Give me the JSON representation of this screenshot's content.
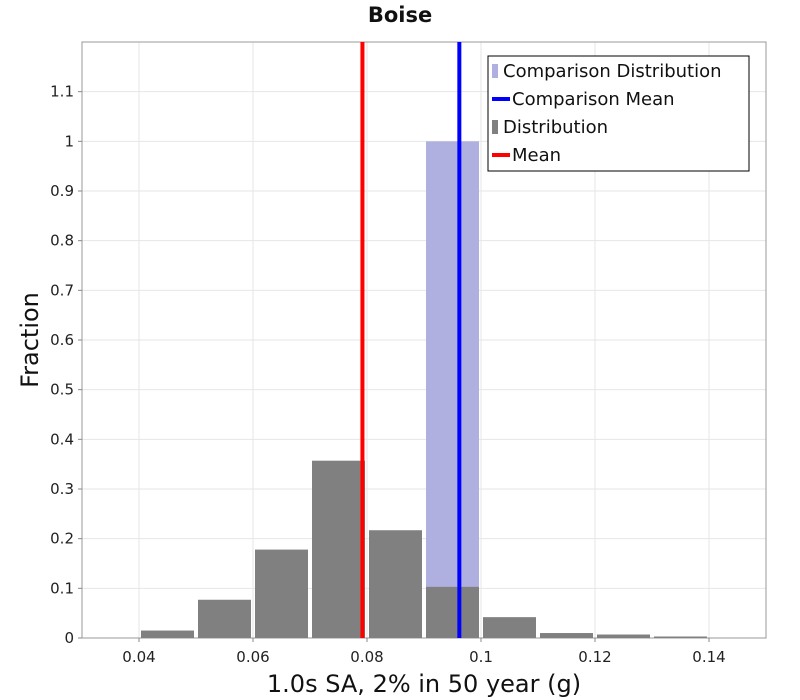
{
  "chart_data": {
    "type": "bar",
    "title": "Boise",
    "xlabel": "1.0s SA, 2% in 50 year (g)",
    "ylabel": "Fraction",
    "xlim": [
      0.03,
      0.15
    ],
    "ylim": [
      0,
      1.2
    ],
    "xticks": [
      "0.04",
      "0.06",
      "0.08",
      "0.1",
      "0.12",
      "0.14"
    ],
    "xtick_values": [
      0.04,
      0.06,
      0.08,
      0.1,
      0.12,
      0.14
    ],
    "yticks": [
      "0",
      "0.1",
      "0.2",
      "0.3",
      "0.4",
      "0.5",
      "0.6",
      "0.7",
      "0.8",
      "0.9",
      "1",
      "1.1"
    ],
    "ytick_values": [
      0,
      0.1,
      0.2,
      0.3,
      0.4,
      0.5,
      0.6,
      0.7,
      0.8,
      0.9,
      1.0,
      1.1
    ],
    "grid": true,
    "legend_position": "top-right",
    "bin_width": 0.01,
    "series": [
      {
        "name": "Comparison Distribution",
        "kind": "histogram",
        "color": "#B0B0E0",
        "x": [
          0.095
        ],
        "values": [
          1.0
        ]
      },
      {
        "name": "Comparison Mean",
        "kind": "vline",
        "color": "#0000FF",
        "x": 0.0962
      },
      {
        "name": "Distribution",
        "kind": "histogram",
        "color": "#808080",
        "x": [
          0.045,
          0.055,
          0.065,
          0.075,
          0.085,
          0.095,
          0.105,
          0.115,
          0.125,
          0.135
        ],
        "values": [
          0.015,
          0.077,
          0.178,
          0.357,
          0.217,
          0.103,
          0.042,
          0.01,
          0.007,
          0.003
        ]
      },
      {
        "name": "Mean",
        "kind": "vline",
        "color": "#FF0000",
        "x": 0.0792
      }
    ]
  }
}
